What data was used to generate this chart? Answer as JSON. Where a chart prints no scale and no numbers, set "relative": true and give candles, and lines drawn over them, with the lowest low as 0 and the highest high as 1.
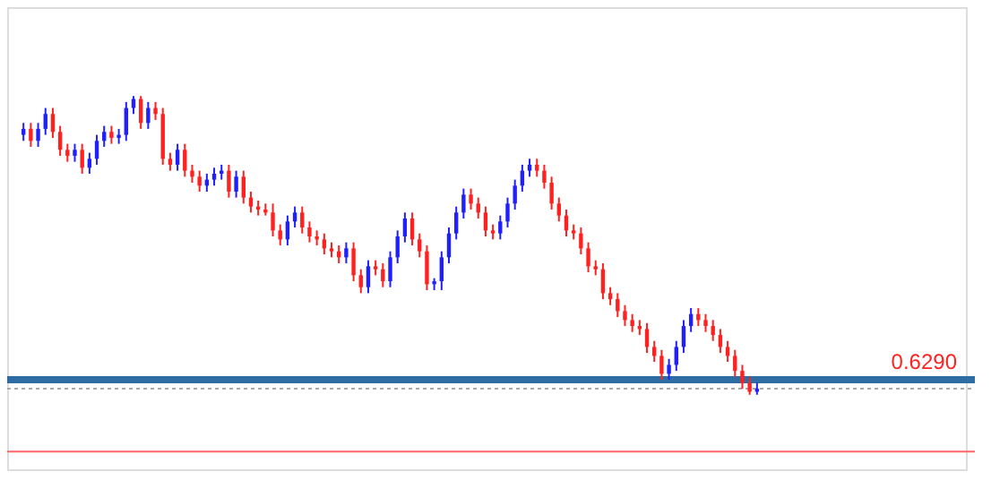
{
  "chart_data": {
    "type": "candlestick",
    "relative": true,
    "grid": false,
    "tick_labels": false,
    "annotations": [
      "0.6290"
    ],
    "categories": [
      null,
      null,
      null,
      null,
      null,
      null,
      null,
      null,
      null,
      null,
      null,
      null,
      null,
      null,
      null,
      null,
      null,
      null,
      null,
      null,
      null,
      null,
      null,
      null,
      null,
      null,
      null,
      null,
      null,
      null,
      null,
      null,
      null,
      null,
      null,
      null,
      null,
      null,
      null,
      null,
      null,
      null,
      null,
      null,
      null,
      null,
      null,
      null,
      null,
      null,
      null,
      null,
      null,
      null,
      null,
      null,
      null,
      null,
      null,
      null,
      null,
      null,
      null,
      null,
      null,
      null,
      null,
      null,
      null,
      null,
      null,
      null,
      null,
      null,
      null,
      null,
      null,
      null,
      null,
      null,
      null,
      null,
      null,
      null,
      null,
      null,
      null,
      null,
      null,
      null,
      null,
      null,
      null,
      null,
      null,
      null,
      null,
      null,
      null,
      null,
      null
    ],
    "ohlc": [
      [
        0.87,
        0.91,
        0.85,
        0.89
      ],
      [
        0.89,
        0.91,
        0.83,
        0.85
      ],
      [
        0.85,
        0.91,
        0.83,
        0.89
      ],
      [
        0.89,
        0.96,
        0.87,
        0.94
      ],
      [
        0.94,
        0.96,
        0.86,
        0.88
      ],
      [
        0.88,
        0.9,
        0.8,
        0.82
      ],
      [
        0.82,
        0.84,
        0.78,
        0.8
      ],
      [
        0.8,
        0.84,
        0.78,
        0.82
      ],
      [
        0.82,
        0.84,
        0.74,
        0.76
      ],
      [
        0.76,
        0.81,
        0.74,
        0.79
      ],
      [
        0.79,
        0.87,
        0.77,
        0.85
      ],
      [
        0.85,
        0.9,
        0.83,
        0.88
      ],
      [
        0.88,
        0.9,
        0.84,
        0.86
      ],
      [
        0.86,
        0.89,
        0.84,
        0.87
      ],
      [
        0.87,
        0.98,
        0.85,
        0.96
      ],
      [
        0.96,
        1.0,
        0.94,
        0.99
      ],
      [
        0.99,
        1.0,
        0.89,
        0.91
      ],
      [
        0.91,
        0.98,
        0.89,
        0.96
      ],
      [
        0.96,
        0.98,
        0.92,
        0.94
      ],
      [
        0.94,
        0.96,
        0.77,
        0.79
      ],
      [
        0.79,
        0.81,
        0.75,
        0.77
      ],
      [
        0.77,
        0.84,
        0.75,
        0.82
      ],
      [
        0.82,
        0.84,
        0.73,
        0.75
      ],
      [
        0.75,
        0.77,
        0.71,
        0.73
      ],
      [
        0.73,
        0.75,
        0.68,
        0.7
      ],
      [
        0.7,
        0.74,
        0.68,
        0.72
      ],
      [
        0.72,
        0.76,
        0.7,
        0.74
      ],
      [
        0.74,
        0.77,
        0.72,
        0.75
      ],
      [
        0.75,
        0.77,
        0.66,
        0.68
      ],
      [
        0.68,
        0.75,
        0.66,
        0.73
      ],
      [
        0.73,
        0.75,
        0.64,
        0.66
      ],
      [
        0.66,
        0.68,
        0.61,
        0.63
      ],
      [
        0.63,
        0.65,
        0.6,
        0.62
      ],
      [
        0.62,
        0.64,
        0.6,
        0.61
      ],
      [
        0.61,
        0.64,
        0.53,
        0.55
      ],
      [
        0.55,
        0.57,
        0.5,
        0.52
      ],
      [
        0.52,
        0.6,
        0.5,
        0.58
      ],
      [
        0.58,
        0.63,
        0.56,
        0.61
      ],
      [
        0.61,
        0.63,
        0.54,
        0.56
      ],
      [
        0.56,
        0.58,
        0.51,
        0.53
      ],
      [
        0.53,
        0.55,
        0.5,
        0.52
      ],
      [
        0.52,
        0.54,
        0.47,
        0.49
      ],
      [
        0.49,
        0.51,
        0.46,
        0.48
      ],
      [
        0.48,
        0.5,
        0.44,
        0.46
      ],
      [
        0.46,
        0.51,
        0.44,
        0.49
      ],
      [
        0.49,
        0.51,
        0.38,
        0.4
      ],
      [
        0.4,
        0.42,
        0.34,
        0.36
      ],
      [
        0.36,
        0.45,
        0.34,
        0.43
      ],
      [
        0.43,
        0.45,
        0.4,
        0.42
      ],
      [
        0.42,
        0.44,
        0.36,
        0.38
      ],
      [
        0.38,
        0.48,
        0.36,
        0.46
      ],
      [
        0.46,
        0.55,
        0.44,
        0.53
      ],
      [
        0.53,
        0.61,
        0.51,
        0.59
      ],
      [
        0.59,
        0.61,
        0.5,
        0.52
      ],
      [
        0.52,
        0.54,
        0.46,
        0.48
      ],
      [
        0.48,
        0.5,
        0.35,
        0.37
      ],
      [
        0.37,
        0.39,
        0.35,
        0.38
      ],
      [
        0.38,
        0.48,
        0.35,
        0.46
      ],
      [
        0.46,
        0.56,
        0.44,
        0.54
      ],
      [
        0.54,
        0.63,
        0.52,
        0.61
      ],
      [
        0.61,
        0.69,
        0.59,
        0.67
      ],
      [
        0.67,
        0.69,
        0.62,
        0.64
      ],
      [
        0.64,
        0.66,
        0.59,
        0.61
      ],
      [
        0.61,
        0.63,
        0.53,
        0.55
      ],
      [
        0.55,
        0.57,
        0.52,
        0.54
      ],
      [
        0.54,
        0.6,
        0.52,
        0.58
      ],
      [
        0.58,
        0.66,
        0.56,
        0.64
      ],
      [
        0.64,
        0.72,
        0.62,
        0.7
      ],
      [
        0.7,
        0.77,
        0.68,
        0.75
      ],
      [
        0.75,
        0.79,
        0.73,
        0.77
      ],
      [
        0.77,
        0.79,
        0.73,
        0.75
      ],
      [
        0.75,
        0.77,
        0.69,
        0.71
      ],
      [
        0.71,
        0.73,
        0.62,
        0.64
      ],
      [
        0.64,
        0.66,
        0.58,
        0.6
      ],
      [
        0.6,
        0.62,
        0.53,
        0.55
      ],
      [
        0.55,
        0.57,
        0.52,
        0.54
      ],
      [
        0.54,
        0.56,
        0.47,
        0.49
      ],
      [
        0.49,
        0.51,
        0.41,
        0.43
      ],
      [
        0.43,
        0.45,
        0.4,
        0.42
      ],
      [
        0.42,
        0.44,
        0.32,
        0.34
      ],
      [
        0.34,
        0.36,
        0.3,
        0.32
      ],
      [
        0.32,
        0.34,
        0.26,
        0.28
      ],
      [
        0.28,
        0.3,
        0.23,
        0.25
      ],
      [
        0.25,
        0.27,
        0.21,
        0.23
      ],
      [
        0.23,
        0.25,
        0.2,
        0.22
      ],
      [
        0.22,
        0.24,
        0.14,
        0.16
      ],
      [
        0.16,
        0.18,
        0.11,
        0.13
      ],
      [
        0.13,
        0.15,
        0.05,
        0.07
      ],
      [
        0.07,
        0.12,
        0.05,
        0.1
      ],
      [
        0.1,
        0.18,
        0.08,
        0.16
      ],
      [
        0.16,
        0.25,
        0.14,
        0.23
      ],
      [
        0.23,
        0.29,
        0.21,
        0.27
      ],
      [
        0.27,
        0.29,
        0.23,
        0.25
      ],
      [
        0.25,
        0.27,
        0.21,
        0.23
      ],
      [
        0.23,
        0.25,
        0.18,
        0.2
      ],
      [
        0.2,
        0.22,
        0.14,
        0.16
      ],
      [
        0.16,
        0.18,
        0.11,
        0.13
      ],
      [
        0.13,
        0.15,
        0.06,
        0.08
      ],
      [
        0.08,
        0.1,
        0.02,
        0.04
      ],
      [
        0.04,
        0.06,
        0.0,
        0.01
      ],
      [
        0.01,
        0.04,
        0.0,
        0.02
      ]
    ],
    "ref_lines": [
      {
        "axis": "y",
        "value": 0.05,
        "color": "#2e6da4",
        "line_style": "solid"
      },
      {
        "axis": "y",
        "value": 0.02,
        "color": "#aaaaaa",
        "line_style": "dotted"
      },
      {
        "axis": "y",
        "value": -0.19,
        "color": "#ff6666"
      }
    ]
  }
}
